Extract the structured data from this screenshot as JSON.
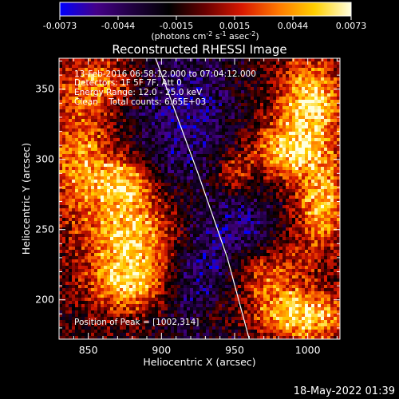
{
  "chart_data": {
    "type": "heatmap",
    "title": "Reconstructed RHESSI Image",
    "xlabel": "Heliocentric X (arcsec)",
    "ylabel": "Heliocentric Y (arcsec)",
    "xlim": [
      830,
      1022
    ],
    "ylim": [
      172,
      372
    ],
    "x_ticks": [
      850,
      900,
      950,
      1000
    ],
    "y_ticks": [
      200,
      250,
      300,
      350
    ],
    "colorbar": {
      "ticks": [
        "-0.0073",
        "-0.0044",
        "-0.0015",
        "0.0015",
        "0.0044",
        "0.0073"
      ],
      "range": [
        -0.0073,
        0.0073
      ],
      "units_prefix": "(photons cm",
      "units_exp1": "-2",
      "units_mid": " s",
      "units_exp2": "-1",
      "units_mid2": " asec",
      "units_exp3": "-2",
      "units_suffix": ")",
      "colormap": [
        "#0000ff",
        "#440088",
        "#200040",
        "#000000",
        "#6a0000",
        "#d81800",
        "#ff7800",
        "#ffd000",
        "#ffffe0"
      ]
    },
    "annotations": [
      "13-Feb-2016 06:58:12.000 to 07:04:12.000",
      "Detectors: 1F 5F 7F, Att 0",
      "Energy Range: 12.0 - 25.0 keV",
      "Clean    Total counts: 6.65E+03"
    ],
    "peak_label": "Position of Peak = [1002,314]",
    "peak": [
      1002,
      314
    ],
    "limb": [
      [
        896,
        372
      ],
      [
        925,
        290
      ],
      [
        945,
        230
      ],
      [
        960,
        172
      ]
    ],
    "sources": [
      {
        "x": 880,
        "y": 245,
        "amp": 0.0072,
        "sx": 22,
        "sy": 25
      },
      {
        "x": 878,
        "y": 210,
        "amp": 0.0045,
        "sx": 20,
        "sy": 14
      },
      {
        "x": 875,
        "y": 285,
        "amp": 0.005,
        "sx": 12,
        "sy": 12
      },
      {
        "x": 845,
        "y": 300,
        "amp": 0.0055,
        "sx": 16,
        "sy": 28
      },
      {
        "x": 855,
        "y": 355,
        "amp": 0.0045,
        "sx": 20,
        "sy": 14
      },
      {
        "x": 1002,
        "y": 340,
        "amp": 0.0075,
        "sx": 16,
        "sy": 22
      },
      {
        "x": 985,
        "y": 305,
        "amp": 0.006,
        "sx": 18,
        "sy": 14
      },
      {
        "x": 1010,
        "y": 268,
        "amp": 0.0065,
        "sx": 12,
        "sy": 22
      },
      {
        "x": 968,
        "y": 218,
        "amp": 0.005,
        "sx": 22,
        "sy": 18
      },
      {
        "x": 998,
        "y": 188,
        "amp": 0.0072,
        "sx": 22,
        "sy": 12
      },
      {
        "x": 948,
        "y": 290,
        "amp": 0.004,
        "sx": 8,
        "sy": 10
      },
      {
        "x": 935,
        "y": 190,
        "amp": 0.003,
        "sx": 12,
        "sy": 10
      },
      {
        "x": 915,
        "y": 330,
        "amp": -0.004,
        "sx": 25,
        "sy": 40
      },
      {
        "x": 930,
        "y": 210,
        "amp": -0.005,
        "sx": 20,
        "sy": 30
      },
      {
        "x": 958,
        "y": 248,
        "amp": -0.0035,
        "sx": 16,
        "sy": 20
      }
    ]
  },
  "footer": {
    "timestamp": "18-May-2022 01:39"
  }
}
